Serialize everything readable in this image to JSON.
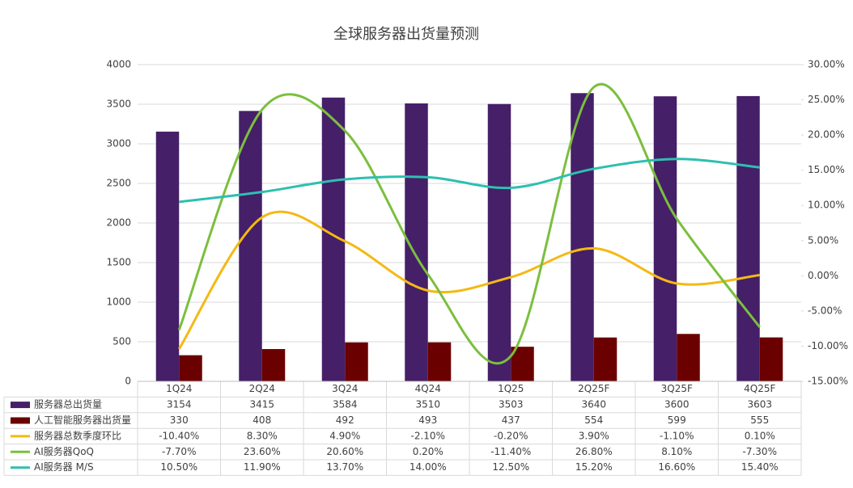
{
  "chart_data": {
    "type": "bar",
    "title": "全球服务器出货量预测",
    "categories": [
      "1Q24",
      "2Q24",
      "3Q24",
      "4Q24",
      "1Q25",
      "2Q25F",
      "3Q25F",
      "4Q25F"
    ],
    "ylim": [
      0,
      4000
    ],
    "yticks": [
      0,
      500,
      1000,
      1500,
      2000,
      2500,
      3000,
      3500,
      4000
    ],
    "y2lim": [
      -15,
      30
    ],
    "y2ticks": [
      {
        "value": -15,
        "label": "-15.00%"
      },
      {
        "value": -10,
        "label": "-10.00%"
      },
      {
        "value": -5,
        "label": "-5.00%"
      },
      {
        "value": 0,
        "label": "0.00%"
      },
      {
        "value": 5,
        "label": "5.00%"
      },
      {
        "value": 10,
        "label": "10.00%"
      },
      {
        "value": 15,
        "label": "15.00%"
      },
      {
        "value": 20,
        "label": "20.00%"
      },
      {
        "value": 25,
        "label": "25.00%"
      },
      {
        "value": 30,
        "label": "30.00%"
      }
    ],
    "grid": true,
    "series": [
      {
        "name": "服务器总出货量",
        "type": "bar",
        "color": "#451f68",
        "values": [
          3154,
          3415,
          3584,
          3510,
          3503,
          3640,
          3600,
          3603
        ]
      },
      {
        "name": "人工智能服务器出货量",
        "type": "bar",
        "color": "#6b0000",
        "values": [
          330,
          408,
          492,
          493,
          437,
          554,
          599,
          555
        ]
      },
      {
        "name": "服务器总数季度环比",
        "type": "line",
        "axis": "y2",
        "color": "#f4b914",
        "values": [
          -10.4,
          8.3,
          4.9,
          -2.1,
          -0.2,
          3.9,
          -1.1,
          0.1
        ],
        "value_labels": [
          "-10.40%",
          "8.30%",
          "4.90%",
          "-2.10%",
          "-0.20%",
          "3.90%",
          "-1.10%",
          "0.10%"
        ]
      },
      {
        "name": "AI服务器QoQ",
        "type": "line",
        "axis": "y2",
        "color": "#7bbf3e",
        "values": [
          -7.7,
          23.6,
          20.6,
          0.2,
          -11.4,
          26.8,
          8.1,
          -7.3
        ],
        "value_labels": [
          "-7.70%",
          "23.60%",
          "20.60%",
          "0.20%",
          "-11.40%",
          "26.80%",
          "8.10%",
          "-7.30%"
        ]
      },
      {
        "name": "AI服务器 M/S",
        "type": "line",
        "axis": "y2",
        "color": "#2ebfb0",
        "values": [
          10.5,
          11.9,
          13.7,
          14.0,
          12.5,
          15.2,
          16.6,
          15.4
        ],
        "value_labels": [
          "10.50%",
          "11.90%",
          "13.70%",
          "14.00%",
          "12.50%",
          "15.20%",
          "16.60%",
          "15.40%"
        ]
      }
    ]
  }
}
